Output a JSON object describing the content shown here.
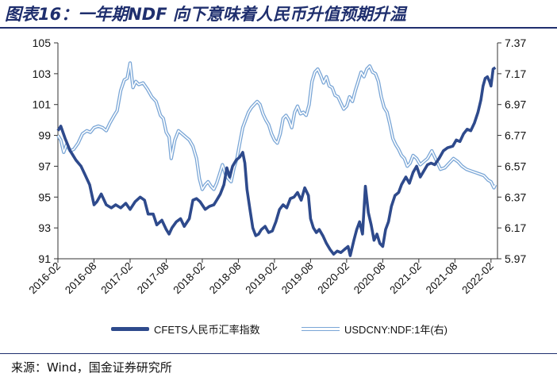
{
  "title": "图表16：一年期NDF 向下意味着人民币升值预期升温",
  "source": "来源：Wind，国金证券研究所",
  "colors": {
    "cfets": "#2e4a8c",
    "ndf": "#7aa6d6",
    "axis": "#333333",
    "title": "#1f2f6e"
  },
  "chart_data": {
    "type": "line",
    "title": "一年期NDF 向下意味着人民币升值预期升温",
    "x_range": [
      2016.08,
      2022.17
    ],
    "x_ticks": [
      {
        "value": 2016.08,
        "label": "2016-02"
      },
      {
        "value": 2016.58,
        "label": "2016-08"
      },
      {
        "value": 2017.08,
        "label": "2017-02"
      },
      {
        "value": 2017.58,
        "label": "2017-08"
      },
      {
        "value": 2018.08,
        "label": "2018-02"
      },
      {
        "value": 2018.58,
        "label": "2018-08"
      },
      {
        "value": 2019.08,
        "label": "2019-02"
      },
      {
        "value": 2019.58,
        "label": "2019-08"
      },
      {
        "value": 2020.08,
        "label": "2020-02"
      },
      {
        "value": 2020.58,
        "label": "2020-08"
      },
      {
        "value": 2021.08,
        "label": "2021-02"
      },
      {
        "value": 2021.58,
        "label": "2021-08"
      },
      {
        "value": 2022.08,
        "label": "2022-02"
      }
    ],
    "y_left": {
      "min": 91,
      "max": 105,
      "ticks": [
        "91",
        "93",
        "95",
        "97",
        "99",
        "101",
        "103",
        "105"
      ]
    },
    "y_right": {
      "min": 5.97,
      "max": 7.37,
      "ticks": [
        "5.97",
        "6.17",
        "6.37",
        "6.57",
        "6.77",
        "6.97",
        "7.17",
        "7.37"
      ]
    },
    "series": [
      {
        "name": "CFETS人民币汇率指数",
        "axis": "left",
        "points": [
          [
            2016.08,
            99.3
          ],
          [
            2016.12,
            99.6
          ],
          [
            2016.18,
            98.8
          ],
          [
            2016.25,
            98.0
          ],
          [
            2016.33,
            97.4
          ],
          [
            2016.4,
            97.0
          ],
          [
            2016.45,
            96.5
          ],
          [
            2016.52,
            95.8
          ],
          [
            2016.58,
            94.5
          ],
          [
            2016.62,
            94.7
          ],
          [
            2016.68,
            95.2
          ],
          [
            2016.75,
            94.5
          ],
          [
            2016.82,
            94.3
          ],
          [
            2016.88,
            94.5
          ],
          [
            2016.95,
            94.3
          ],
          [
            2017.02,
            94.6
          ],
          [
            2017.08,
            94.2
          ],
          [
            2017.15,
            94.7
          ],
          [
            2017.22,
            95.0
          ],
          [
            2017.28,
            94.8
          ],
          [
            2017.33,
            93.9
          ],
          [
            2017.4,
            93.9
          ],
          [
            2017.45,
            93.2
          ],
          [
            2017.52,
            93.5
          ],
          [
            2017.58,
            92.9
          ],
          [
            2017.62,
            92.6
          ],
          [
            2017.66,
            93.0
          ],
          [
            2017.72,
            93.4
          ],
          [
            2017.78,
            93.6
          ],
          [
            2017.83,
            93.1
          ],
          [
            2017.9,
            93.6
          ],
          [
            2017.95,
            94.8
          ],
          [
            2018.0,
            94.9
          ],
          [
            2018.05,
            94.7
          ],
          [
            2018.12,
            94.2
          ],
          [
            2018.18,
            94.4
          ],
          [
            2018.24,
            94.5
          ],
          [
            2018.28,
            94.8
          ],
          [
            2018.33,
            95.2
          ],
          [
            2018.38,
            95.8
          ],
          [
            2018.42,
            96.9
          ],
          [
            2018.46,
            96.3
          ],
          [
            2018.5,
            97.0
          ],
          [
            2018.55,
            97.4
          ],
          [
            2018.6,
            97.6
          ],
          [
            2018.64,
            97.9
          ],
          [
            2018.67,
            97.2
          ],
          [
            2018.7,
            95.5
          ],
          [
            2018.74,
            94.2
          ],
          [
            2018.78,
            93.0
          ],
          [
            2018.82,
            92.5
          ],
          [
            2018.86,
            92.6
          ],
          [
            2018.9,
            92.9
          ],
          [
            2018.95,
            93.1
          ],
          [
            2019.0,
            92.7
          ],
          [
            2019.05,
            92.8
          ],
          [
            2019.1,
            93.4
          ],
          [
            2019.15,
            94.2
          ],
          [
            2019.2,
            94.5
          ],
          [
            2019.25,
            94.3
          ],
          [
            2019.3,
            94.9
          ],
          [
            2019.35,
            95.0
          ],
          [
            2019.4,
            95.3
          ],
          [
            2019.45,
            94.8
          ],
          [
            2019.5,
            95.6
          ],
          [
            2019.55,
            95.1
          ],
          [
            2019.58,
            93.6
          ],
          [
            2019.62,
            93.0
          ],
          [
            2019.66,
            92.7
          ],
          [
            2019.7,
            92.9
          ],
          [
            2019.75,
            92.5
          ],
          [
            2019.8,
            92.0
          ],
          [
            2019.85,
            91.6
          ],
          [
            2019.9,
            91.3
          ],
          [
            2019.95,
            91.5
          ],
          [
            2020.0,
            91.4
          ],
          [
            2020.05,
            91.6
          ],
          [
            2020.1,
            91.8
          ],
          [
            2020.13,
            91.2
          ],
          [
            2020.18,
            92.2
          ],
          [
            2020.22,
            92.9
          ],
          [
            2020.26,
            93.4
          ],
          [
            2020.3,
            92.6
          ],
          [
            2020.34,
            95.7
          ],
          [
            2020.38,
            94.0
          ],
          [
            2020.42,
            93.2
          ],
          [
            2020.46,
            92.2
          ],
          [
            2020.5,
            92.6
          ],
          [
            2020.54,
            92.0
          ],
          [
            2020.58,
            91.8
          ],
          [
            2020.62,
            92.9
          ],
          [
            2020.66,
            93.4
          ],
          [
            2020.7,
            94.4
          ],
          [
            2020.75,
            95.1
          ],
          [
            2020.8,
            95.3
          ],
          [
            2020.84,
            95.8
          ],
          [
            2020.9,
            96.3
          ],
          [
            2020.95,
            95.9
          ],
          [
            2021.0,
            96.6
          ],
          [
            2021.05,
            97.0
          ],
          [
            2021.1,
            96.3
          ],
          [
            2021.15,
            96.7
          ],
          [
            2021.2,
            97.1
          ],
          [
            2021.25,
            97.2
          ],
          [
            2021.3,
            97.1
          ],
          [
            2021.36,
            97.5
          ],
          [
            2021.42,
            98.0
          ],
          [
            2021.48,
            98.2
          ],
          [
            2021.55,
            98.3
          ],
          [
            2021.6,
            98.7
          ],
          [
            2021.65,
            98.6
          ],
          [
            2021.7,
            99.1
          ],
          [
            2021.75,
            99.4
          ],
          [
            2021.8,
            99.3
          ],
          [
            2021.85,
            99.8
          ],
          [
            2021.9,
            100.5
          ],
          [
            2021.94,
            101.3
          ],
          [
            2021.97,
            102.2
          ],
          [
            2022.0,
            102.7
          ],
          [
            2022.03,
            102.8
          ],
          [
            2022.06,
            102.5
          ],
          [
            2022.08,
            102.2
          ],
          [
            2022.11,
            103.3
          ],
          [
            2022.14,
            103.4
          ]
        ]
      },
      {
        "name": "USDCNY:NDF:1年(右)",
        "axis": "right",
        "points": [
          [
            2016.08,
            6.77
          ],
          [
            2016.12,
            6.74
          ],
          [
            2016.16,
            6.66
          ],
          [
            2016.2,
            6.71
          ],
          [
            2016.25,
            6.67
          ],
          [
            2016.3,
            6.68
          ],
          [
            2016.36,
            6.72
          ],
          [
            2016.42,
            6.78
          ],
          [
            2016.48,
            6.8
          ],
          [
            2016.53,
            6.79
          ],
          [
            2016.58,
            6.82
          ],
          [
            2016.64,
            6.83
          ],
          [
            2016.7,
            6.82
          ],
          [
            2016.75,
            6.8
          ],
          [
            2016.8,
            6.85
          ],
          [
            2016.86,
            6.9
          ],
          [
            2016.9,
            6.93
          ],
          [
            2016.95,
            7.06
          ],
          [
            2017.0,
            7.13
          ],
          [
            2017.04,
            7.14
          ],
          [
            2017.08,
            7.24
          ],
          [
            2017.12,
            7.08
          ],
          [
            2017.16,
            7.12
          ],
          [
            2017.2,
            7.1
          ],
          [
            2017.26,
            7.11
          ],
          [
            2017.32,
            7.07
          ],
          [
            2017.38,
            7.02
          ],
          [
            2017.44,
            6.99
          ],
          [
            2017.5,
            6.9
          ],
          [
            2017.54,
            6.88
          ],
          [
            2017.58,
            6.79
          ],
          [
            2017.62,
            6.76
          ],
          [
            2017.65,
            6.62
          ],
          [
            2017.7,
            6.74
          ],
          [
            2017.75,
            6.8
          ],
          [
            2017.8,
            6.78
          ],
          [
            2017.85,
            6.76
          ],
          [
            2017.9,
            6.74
          ],
          [
            2017.95,
            6.7
          ],
          [
            2018.0,
            6.62
          ],
          [
            2018.04,
            6.49
          ],
          [
            2018.08,
            6.42
          ],
          [
            2018.12,
            6.45
          ],
          [
            2018.16,
            6.47
          ],
          [
            2018.2,
            6.44
          ],
          [
            2018.24,
            6.42
          ],
          [
            2018.28,
            6.46
          ],
          [
            2018.32,
            6.52
          ],
          [
            2018.36,
            6.58
          ],
          [
            2018.4,
            6.52
          ],
          [
            2018.44,
            6.49
          ],
          [
            2018.48,
            6.47
          ],
          [
            2018.52,
            6.56
          ],
          [
            2018.56,
            6.62
          ],
          [
            2018.6,
            6.72
          ],
          [
            2018.64,
            6.82
          ],
          [
            2018.68,
            6.87
          ],
          [
            2018.72,
            6.92
          ],
          [
            2018.76,
            6.95
          ],
          [
            2018.8,
            6.97
          ],
          [
            2018.84,
            6.99
          ],
          [
            2018.88,
            6.97
          ],
          [
            2018.92,
            6.91
          ],
          [
            2018.96,
            6.87
          ],
          [
            2019.0,
            6.84
          ],
          [
            2019.04,
            6.78
          ],
          [
            2019.08,
            6.74
          ],
          [
            2019.12,
            6.72
          ],
          [
            2019.16,
            6.78
          ],
          [
            2019.2,
            6.88
          ],
          [
            2019.24,
            6.9
          ],
          [
            2019.28,
            6.87
          ],
          [
            2019.32,
            6.82
          ],
          [
            2019.36,
            6.92
          ],
          [
            2019.4,
            6.96
          ],
          [
            2019.44,
            6.91
          ],
          [
            2019.48,
            6.92
          ],
          [
            2019.52,
            6.9
          ],
          [
            2019.56,
            6.97
          ],
          [
            2019.6,
            7.12
          ],
          [
            2019.64,
            7.18
          ],
          [
            2019.68,
            7.2
          ],
          [
            2019.72,
            7.16
          ],
          [
            2019.76,
            7.11
          ],
          [
            2019.8,
            7.15
          ],
          [
            2019.84,
            7.09
          ],
          [
            2019.88,
            7.08
          ],
          [
            2019.92,
            7.03
          ],
          [
            2019.96,
            7.02
          ],
          [
            2020.0,
            6.98
          ],
          [
            2020.04,
            6.94
          ],
          [
            2020.08,
            6.96
          ],
          [
            2020.12,
            7.02
          ],
          [
            2020.16,
            6.99
          ],
          [
            2020.2,
            7.06
          ],
          [
            2020.24,
            7.12
          ],
          [
            2020.28,
            7.18
          ],
          [
            2020.32,
            7.15
          ],
          [
            2020.36,
            7.2
          ],
          [
            2020.4,
            7.22
          ],
          [
            2020.44,
            7.18
          ],
          [
            2020.48,
            7.17
          ],
          [
            2020.52,
            7.12
          ],
          [
            2020.56,
            7.02
          ],
          [
            2020.6,
            6.95
          ],
          [
            2020.64,
            6.92
          ],
          [
            2020.68,
            6.84
          ],
          [
            2020.72,
            6.75
          ],
          [
            2020.76,
            6.71
          ],
          [
            2020.8,
            6.68
          ],
          [
            2020.84,
            6.64
          ],
          [
            2020.88,
            6.62
          ],
          [
            2020.92,
            6.57
          ],
          [
            2020.96,
            6.59
          ],
          [
            2021.0,
            6.64
          ],
          [
            2021.05,
            6.62
          ],
          [
            2021.1,
            6.58
          ],
          [
            2021.15,
            6.6
          ],
          [
            2021.2,
            6.62
          ],
          [
            2021.26,
            6.67
          ],
          [
            2021.32,
            6.61
          ],
          [
            2021.38,
            6.55
          ],
          [
            2021.44,
            6.56
          ],
          [
            2021.5,
            6.59
          ],
          [
            2021.56,
            6.62
          ],
          [
            2021.62,
            6.6
          ],
          [
            2021.68,
            6.57
          ],
          [
            2021.74,
            6.55
          ],
          [
            2021.8,
            6.54
          ],
          [
            2021.86,
            6.53
          ],
          [
            2021.92,
            6.52
          ],
          [
            2021.98,
            6.51
          ],
          [
            2022.04,
            6.48
          ],
          [
            2022.08,
            6.47
          ],
          [
            2022.12,
            6.43
          ],
          [
            2022.14,
            6.45
          ]
        ]
      }
    ]
  },
  "legend": {
    "cfets": "CFETS人民币汇率指数",
    "ndf": "USDCNY:NDF:1年(右)"
  }
}
